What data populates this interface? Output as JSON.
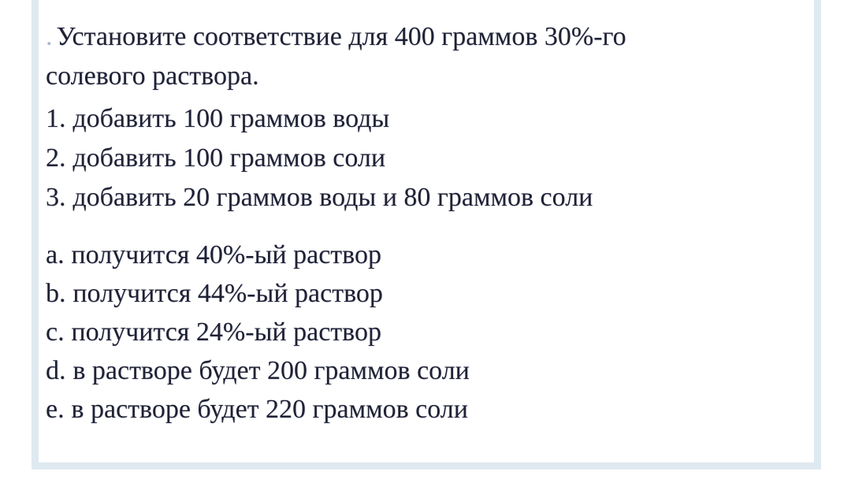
{
  "card": {
    "artifact_mark": ".",
    "question": {
      "line1": "Установите соответствие для 400 граммов 30%-го",
      "line2": "солевого раствора."
    },
    "numbered_items": [
      {
        "marker": "1.",
        "text": "добавить 100 граммов воды"
      },
      {
        "marker": "2.",
        "text": "добавить 100 граммов соли"
      },
      {
        "marker": "3.",
        "text": "добавить 20 граммов воды и 80 граммов соли"
      }
    ],
    "lettered_items": [
      {
        "marker": "a.",
        "text": "получится 40%-ый раствор"
      },
      {
        "marker": "b.",
        "text": "получится 44%-ый раствор"
      },
      {
        "marker": "c.",
        "text": "получится 24%-ый раствор"
      },
      {
        "marker": "d.",
        "text": "в растворе будет 200 граммов соли"
      },
      {
        "marker": "e.",
        "text": "в растворе будет 220 граммов соли"
      }
    ],
    "colors": {
      "border": "#dfe9f0",
      "text": "#1f2134",
      "background": "#ffffff"
    }
  }
}
